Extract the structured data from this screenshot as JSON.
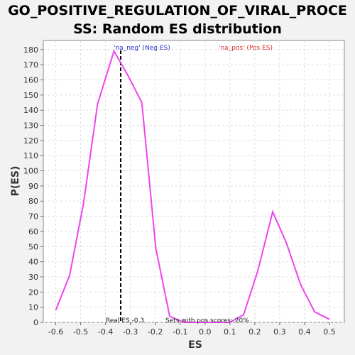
{
  "chart_data": {
    "type": "line",
    "title_line1": "GO_POSITIVE_REGULATION_OF_VIRAL_PROCE",
    "title_line2": "SS: Random ES distribution",
    "xlabel": "ES",
    "ylabel": "P(ES)",
    "xlim": [
      -0.65,
      0.56
    ],
    "ylim": [
      0,
      186
    ],
    "x_ticks": [
      -0.6,
      -0.5,
      -0.4,
      -0.3,
      -0.2,
      -0.1,
      0.0,
      0.1,
      0.2,
      0.3,
      0.4,
      0.5
    ],
    "x_tick_labels": [
      "-0.6",
      "-0.5",
      "-0.4",
      "-0.3",
      "-0.2",
      "-0.1",
      "0.0",
      "0.1",
      "0.2",
      "0.3",
      "0.4",
      "0.5"
    ],
    "y_ticks": [
      0,
      10,
      20,
      30,
      40,
      50,
      60,
      70,
      80,
      90,
      100,
      110,
      120,
      130,
      140,
      150,
      160,
      170,
      180
    ],
    "y_tick_labels": [
      "0",
      "10",
      "20",
      "30",
      "40",
      "50",
      "60",
      "70",
      "80",
      "90",
      "100",
      "110",
      "120",
      "130",
      "140",
      "150",
      "160",
      "170",
      "180"
    ],
    "grid": true,
    "series": [
      {
        "color": "#ee44ee",
        "x": [
          -0.6,
          -0.544,
          -0.488,
          -0.432,
          -0.366,
          -0.31,
          -0.254,
          -0.198,
          -0.142,
          -0.086,
          -0.03,
          0.026,
          0.1,
          0.155,
          0.212,
          0.272,
          0.328,
          0.384,
          0.44,
          0.5
        ],
        "y": [
          8,
          31,
          79,
          144,
          179,
          163,
          145,
          49,
          4,
          0,
          0,
          0,
          0,
          5,
          34,
          73,
          52,
          25,
          7,
          2
        ]
      }
    ],
    "real_es": -0.339,
    "real_es_label": "Real ES -0.3",
    "pos_scores_label": "Sets with pos scores: 20%",
    "legend_neg": "'na_neg' (Neg ES)",
    "legend_pos": "'na_pos' (Pos ES)",
    "colors": {
      "line": "#ee44ee",
      "grid": "#dddddd",
      "real_es_line": "#000000",
      "legend_neg": "#2d2dd0",
      "legend_pos": "#e03030"
    }
  }
}
